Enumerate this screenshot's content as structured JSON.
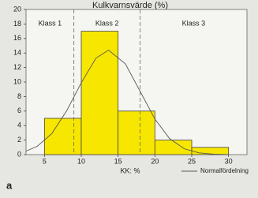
{
  "chart_data": {
    "type": "histogram",
    "title": "Kulkvarnsvärde (%)",
    "x_label": "KK: %",
    "panel_label": "a",
    "bins": [
      5,
      10,
      15,
      20,
      25,
      30
    ],
    "values": [
      5,
      17,
      6,
      2,
      1
    ],
    "color": "#f7e600",
    "xlim": [
      2.5,
      32.5
    ],
    "xticks": [
      5,
      10,
      15,
      20,
      25,
      30
    ],
    "ylim": [
      0,
      20
    ],
    "yticks": [
      0,
      2,
      4,
      6,
      8,
      10,
      12,
      14,
      16,
      18,
      20
    ],
    "class_boundaries": [
      9,
      18
    ],
    "class_labels": [
      "Klass 1",
      "Klass 2",
      "Klass 3"
    ],
    "curve": {
      "name": "Normalfördelning",
      "color": "#555555",
      "x": [
        2.5,
        4,
        6,
        8,
        10,
        12,
        13.7,
        16,
        18,
        20,
        22,
        24,
        26,
        28,
        30
      ],
      "values": [
        0.49,
        1.13,
        2.9,
        6.0,
        9.9,
        13.3,
        14.4,
        12.5,
        8.7,
        4.9,
        2.2,
        0.8,
        0.24,
        0.06,
        0.01
      ]
    },
    "legend": "bottom-right"
  }
}
